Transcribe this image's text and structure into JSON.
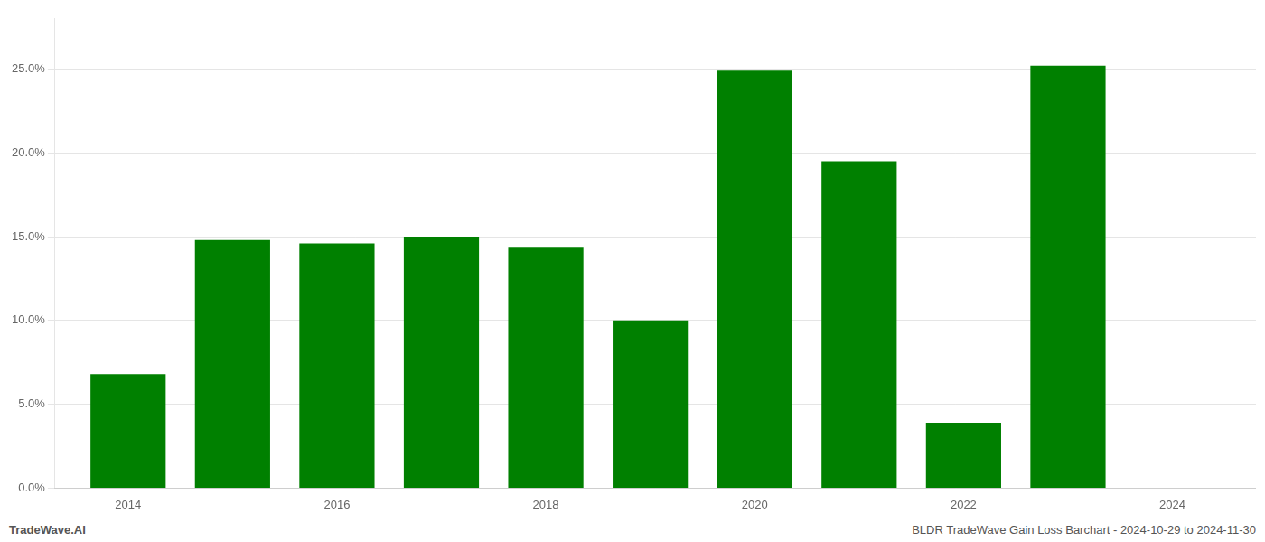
{
  "chart_data": {
    "type": "bar",
    "x": [
      2014,
      2015,
      2016,
      2017,
      2018,
      2019,
      2020,
      2021,
      2022,
      2023
    ],
    "values": [
      0.068,
      0.148,
      0.146,
      0.15,
      0.144,
      0.1,
      0.249,
      0.195,
      0.039,
      0.252
    ],
    "color": "#008000",
    "xlim": [
      2013.3,
      2024.8
    ],
    "xticks": [
      2014,
      2016,
      2018,
      2020,
      2022,
      2024
    ],
    "ylim": [
      0,
      0.28
    ],
    "yticks": [
      {
        "value": 0.0,
        "label": "0.0%"
      },
      {
        "value": 0.05,
        "label": "5.0%"
      },
      {
        "value": 0.1,
        "label": "10.0%"
      },
      {
        "value": 0.15,
        "label": "15.0%"
      },
      {
        "value": 0.2,
        "label": "20.0%"
      },
      {
        "value": 0.25,
        "label": "25.0%"
      }
    ],
    "grid": true,
    "annotations": [
      "TradeWave.AI",
      "BLDR TradeWave Gain Loss Barchart - 2024-10-29 to 2024-11-30"
    ]
  }
}
